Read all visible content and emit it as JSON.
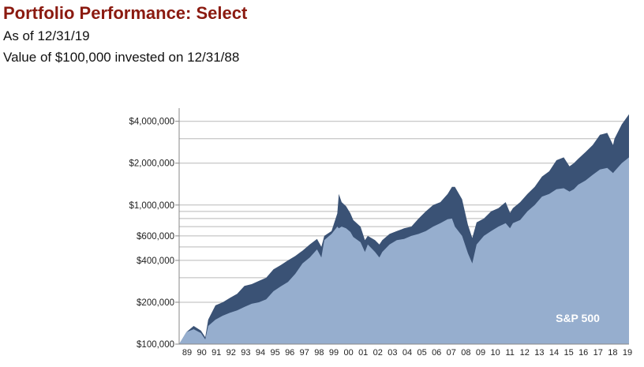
{
  "header": {
    "title": "Portfolio Performance: Select",
    "as_of": "As of 12/31/19",
    "subtitle": "Value of $100,000 invested on 12/31/88"
  },
  "colors": {
    "title": "#8b1a10",
    "fund": "#3a5275",
    "index": "#96aece",
    "gridline": "#b9b9b9"
  },
  "chart_data": {
    "type": "area",
    "scale": "log",
    "ylim": [
      100000,
      4600000
    ],
    "y_ticks": [
      {
        "value": 4000000,
        "label": "$4,000,000"
      },
      {
        "value": 2000000,
        "label": "$2,000,000"
      },
      {
        "value": 1000000,
        "label": "$1,000,000"
      },
      {
        "value": 600000,
        "label": "$600,000"
      },
      {
        "value": 400000,
        "label": "$400,000"
      },
      {
        "value": 200000,
        "label": "$200,000"
      },
      {
        "value": 100000,
        "label": "$100,000"
      }
    ],
    "y_gridlines": [
      4000000,
      3000000,
      2000000,
      1000000,
      900000,
      800000,
      700000,
      600000,
      500000,
      400000,
      300000,
      200000
    ],
    "x_tick_labels": [
      "89",
      "90",
      "91",
      "92",
      "93",
      "94",
      "95",
      "96",
      "97",
      "98",
      "99",
      "00",
      "01",
      "02",
      "03",
      "04",
      "05",
      "06",
      "07",
      "08",
      "09",
      "10",
      "11",
      "12",
      "13",
      "14",
      "15",
      "16",
      "17",
      "18",
      "19"
    ],
    "x": [
      1989.0,
      1989.5,
      1990.0,
      1990.5,
      1990.8,
      1991.0,
      1991.5,
      1992.0,
      1992.5,
      1993.0,
      1993.5,
      1994.0,
      1994.5,
      1995.0,
      1995.5,
      1996.0,
      1996.5,
      1997.0,
      1997.5,
      1998.0,
      1998.5,
      1998.8,
      1999.0,
      1999.5,
      1999.9,
      2000.0,
      2000.2,
      2000.5,
      2000.8,
      2001.0,
      2001.5,
      2001.8,
      2002.0,
      2002.5,
      2002.8,
      2003.0,
      2003.5,
      2004.0,
      2004.5,
      2005.0,
      2005.5,
      2006.0,
      2006.5,
      2007.0,
      2007.5,
      2007.8,
      2008.0,
      2008.5,
      2008.9,
      2009.2,
      2009.5,
      2010.0,
      2010.5,
      2011.0,
      2011.5,
      2011.8,
      2012.0,
      2012.5,
      2013.0,
      2013.5,
      2014.0,
      2014.5,
      2015.0,
      2015.5,
      2015.9,
      2016.2,
      2016.5,
      2017.0,
      2017.5,
      2018.0,
      2018.5,
      2018.9,
      2019.0,
      2019.5,
      2020.0
    ],
    "series": [
      {
        "name": "",
        "values": [
          100000,
          122000,
          135000,
          125000,
          112000,
          150000,
          190000,
          200000,
          215000,
          230000,
          262000,
          270000,
          285000,
          300000,
          345000,
          370000,
          400000,
          430000,
          470000,
          520000,
          570000,
          500000,
          600000,
          650000,
          870000,
          1200000,
          1050000,
          980000,
          870000,
          780000,
          700000,
          560000,
          600000,
          560000,
          520000,
          560000,
          620000,
          650000,
          680000,
          700000,
          800000,
          900000,
          1000000,
          1050000,
          1200000,
          1350000,
          1350000,
          1100000,
          720000,
          580000,
          750000,
          800000,
          900000,
          950000,
          1050000,
          880000,
          950000,
          1050000,
          1200000,
          1350000,
          1600000,
          1750000,
          2100000,
          2200000,
          1900000,
          2000000,
          2150000,
          2400000,
          2700000,
          3200000,
          3300000,
          2700000,
          3000000,
          3800000,
          4500000
        ]
      },
      {
        "name": "S&P 500",
        "values": [
          100000,
          122000,
          128000,
          120000,
          108000,
          135000,
          150000,
          160000,
          168000,
          175000,
          185000,
          195000,
          200000,
          210000,
          240000,
          260000,
          280000,
          320000,
          380000,
          420000,
          480000,
          420000,
          560000,
          620000,
          700000,
          680000,
          700000,
          680000,
          640000,
          590000,
          540000,
          460000,
          520000,
          460000,
          420000,
          460000,
          520000,
          560000,
          570000,
          600000,
          620000,
          650000,
          700000,
          740000,
          790000,
          800000,
          700000,
          600000,
          450000,
          380000,
          520000,
          600000,
          650000,
          700000,
          740000,
          680000,
          740000,
          780000,
          900000,
          1000000,
          1150000,
          1200000,
          1300000,
          1320000,
          1250000,
          1300000,
          1400000,
          1500000,
          1650000,
          1800000,
          1850000,
          1700000,
          1750000,
          2000000,
          2200000
        ]
      }
    ]
  }
}
